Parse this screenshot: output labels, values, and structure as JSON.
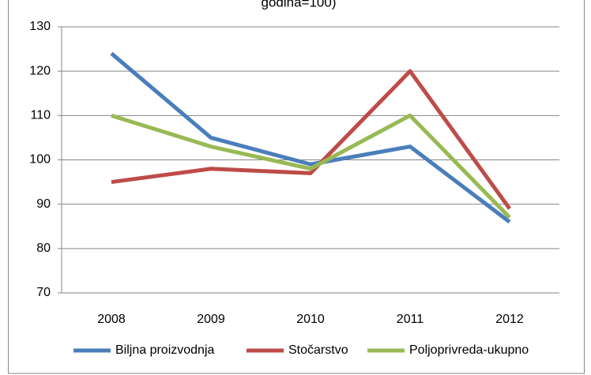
{
  "chart_data": {
    "type": "line",
    "title": "godina=100)",
    "categories": [
      "2008",
      "2009",
      "2010",
      "2011",
      "2012"
    ],
    "series": [
      {
        "name": "Biljna proizvodnja",
        "color": "#4a7ebb",
        "values": [
          124,
          105,
          99,
          103,
          86
        ]
      },
      {
        "name": "Stočarstvo",
        "color": "#be4b48",
        "values": [
          95,
          98,
          97,
          120,
          89
        ]
      },
      {
        "name": "Poljoprivreda-ukupno",
        "color": "#98b954",
        "values": [
          110,
          103,
          98,
          110,
          87
        ]
      }
    ],
    "ylim": [
      70,
      130
    ],
    "yticks": [
      70,
      80,
      90,
      100,
      110,
      120,
      130
    ],
    "grid": true,
    "legend": "bottom"
  }
}
